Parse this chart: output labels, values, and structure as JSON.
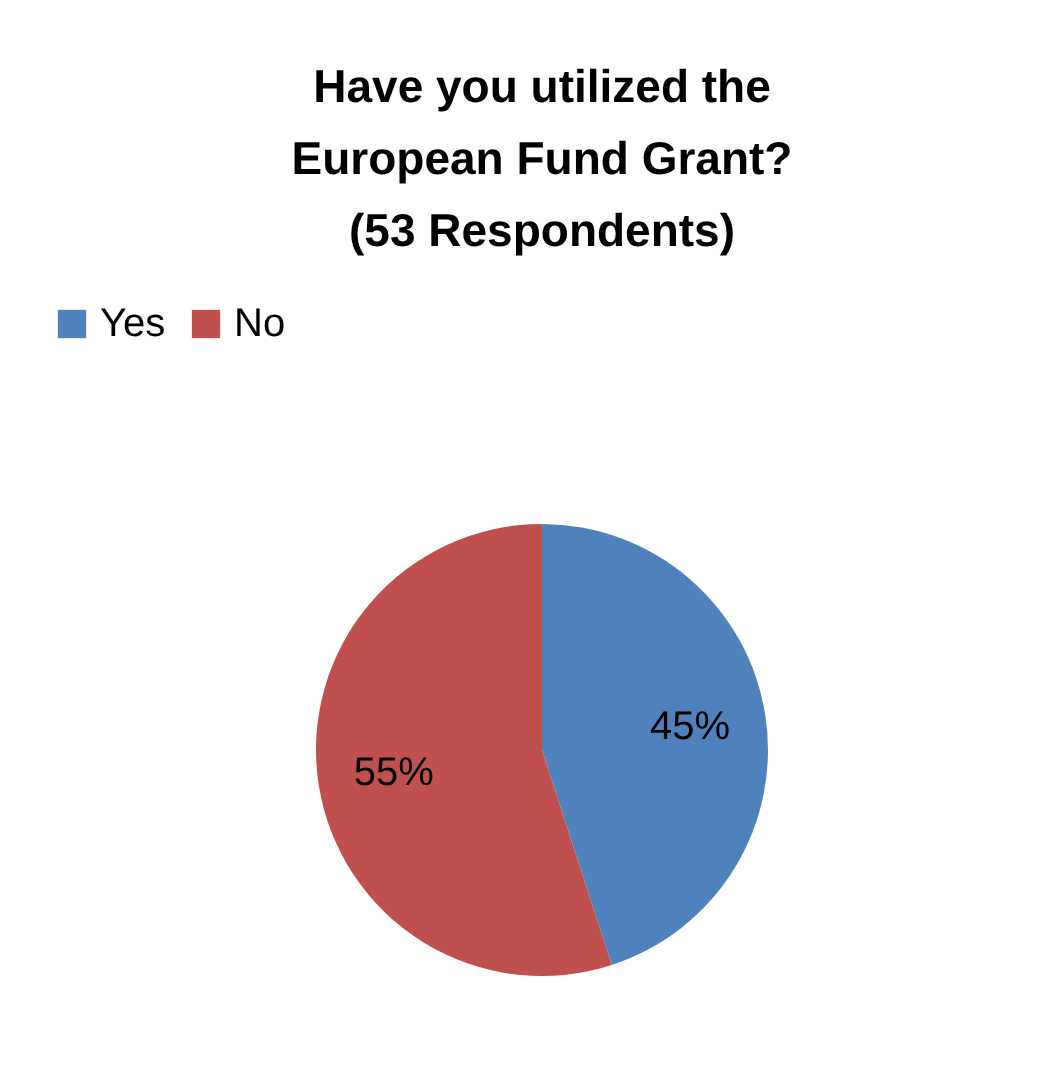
{
  "chart_data": {
    "type": "pie",
    "title": "Have you utilized the\nEuropean Fund Grant?\n(53 Respondents)",
    "categories": [
      "Yes",
      "No"
    ],
    "values": [
      45,
      55
    ],
    "colors": [
      "#4f81bd",
      "#c0504d"
    ],
    "value_labels": [
      "45%",
      "55%"
    ],
    "legend": "top"
  }
}
